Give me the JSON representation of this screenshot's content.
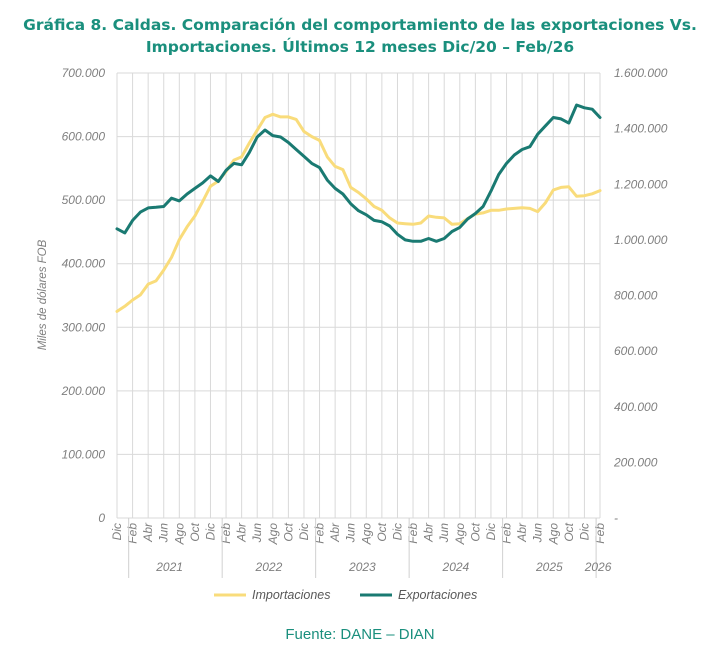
{
  "chart_data": {
    "type": "line",
    "title_line1": "Gráfica 8. Caldas. Comparación del comportamiento de las exportaciones Vs.",
    "title_line2": "Importaciones. Últimos 12 meses Dic/20 – Feb/26",
    "ylabel": "Miles de dólares FOB",
    "ylim_left": [
      0,
      700000
    ],
    "ylim_right": [
      0,
      1600000
    ],
    "left_ticks": [
      "0",
      "100.000",
      "200.000",
      "300.000",
      "400.000",
      "500.000",
      "600.000",
      "700.000"
    ],
    "right_ticks": [
      "-",
      "200.000",
      "400.000",
      "600.000",
      "800.000",
      "1.000.000",
      "1.200.000",
      "1.400.000",
      "1.600.000"
    ],
    "month_labels": [
      "Dic",
      "Feb",
      "Abr",
      "Jun",
      "Ago",
      "Oct",
      "Dic",
      "Feb",
      "Abr",
      "Jun",
      "Ago",
      "Oct",
      "Dic",
      "Feb",
      "Abr",
      "Jun",
      "Ago",
      "Oct",
      "Dic",
      "Feb",
      "Abr",
      "Jun",
      "Ago",
      "Oct",
      "Dic",
      "Feb",
      "Abr",
      "Jun",
      "Ago",
      "Oct",
      "Dic",
      "Feb"
    ],
    "year_labels": [
      "2021",
      "2022",
      "2023",
      "2024",
      "2025",
      "2026"
    ],
    "grid": true,
    "legend_position": "bottom",
    "series": [
      {
        "name": "Importaciones",
        "axis": "left",
        "color": "#f9dc7b",
        "values": [
          325000,
          333000,
          343000,
          351000,
          368000,
          373000,
          390000,
          410000,
          438000,
          458000,
          475000,
          498000,
          522000,
          530000,
          545000,
          563000,
          568000,
          590000,
          610000,
          630000,
          635000,
          631000,
          631000,
          627000,
          608000,
          600000,
          594000,
          568000,
          553000,
          548000,
          520000,
          512000,
          502000,
          490000,
          484000,
          472000,
          464000,
          463000,
          462000,
          464000,
          475000,
          473000,
          472000,
          462000,
          463000,
          471000,
          478000,
          480000,
          484000,
          484000,
          486000,
          487000,
          488000,
          487000,
          482000,
          496000,
          516000,
          520000,
          521000,
          506000,
          507000,
          510000,
          515000
        ]
      },
      {
        "name": "Exportaciones",
        "axis": "right",
        "color": "#1a7a72",
        "values": [
          1040000,
          1025000,
          1070000,
          1100000,
          1115000,
          1117000,
          1120000,
          1150000,
          1140000,
          1165000,
          1185000,
          1205000,
          1230000,
          1210000,
          1250000,
          1275000,
          1270000,
          1315000,
          1370000,
          1395000,
          1375000,
          1370000,
          1350000,
          1325000,
          1300000,
          1275000,
          1260000,
          1215000,
          1185000,
          1165000,
          1130000,
          1105000,
          1090000,
          1070000,
          1065000,
          1050000,
          1020000,
          1000000,
          995000,
          995000,
          1005000,
          995000,
          1005000,
          1030000,
          1045000,
          1075000,
          1095000,
          1120000,
          1175000,
          1235000,
          1275000,
          1305000,
          1325000,
          1335000,
          1380000,
          1410000,
          1440000,
          1435000,
          1420000,
          1485000,
          1475000,
          1470000,
          1440000
        ]
      }
    ]
  },
  "source": "Fuente: DANE – DIAN"
}
